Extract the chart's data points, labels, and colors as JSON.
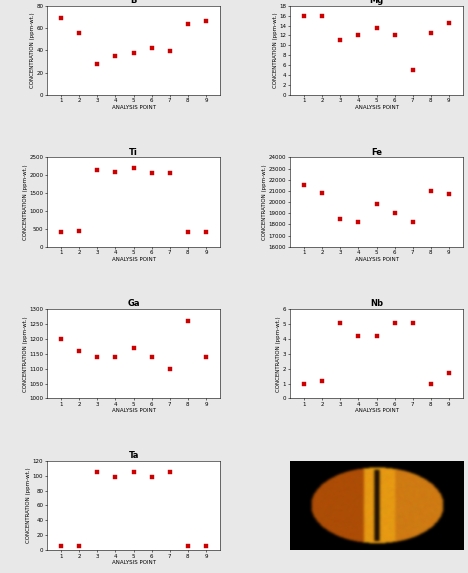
{
  "B": {
    "x": [
      1,
      2,
      3,
      4,
      5,
      6,
      7,
      8,
      9
    ],
    "y": [
      69,
      56,
      28,
      35,
      38,
      42,
      39,
      64,
      66
    ],
    "ylim": [
      0,
      80
    ],
    "yticks": [
      0,
      20,
      40,
      60,
      80
    ]
  },
  "Mg": {
    "x": [
      1,
      2,
      3,
      4,
      5,
      6,
      7,
      8,
      9
    ],
    "y": [
      16,
      16,
      11,
      12,
      13.5,
      12,
      5,
      12.5,
      14.5
    ],
    "ylim": [
      0,
      18
    ],
    "yticks": [
      0,
      2,
      4,
      6,
      8,
      10,
      12,
      14,
      16,
      18
    ]
  },
  "Ti": {
    "x": [
      1,
      2,
      3,
      4,
      5,
      6,
      7,
      8,
      9
    ],
    "y": [
      400,
      450,
      2150,
      2100,
      2200,
      2050,
      2050,
      400,
      400
    ],
    "ylim": [
      0,
      2500
    ],
    "yticks": [
      0,
      500,
      1000,
      1500,
      2000,
      2500
    ]
  },
  "Fe": {
    "x": [
      1,
      2,
      3,
      4,
      5,
      6,
      7,
      8,
      9
    ],
    "y": [
      21500,
      20800,
      18500,
      18200,
      19800,
      19000,
      18200,
      21000,
      20700
    ],
    "ylim": [
      16000,
      24000
    ],
    "yticks": [
      16000,
      17000,
      18000,
      19000,
      20000,
      21000,
      22000,
      23000,
      24000
    ]
  },
  "Ga": {
    "x": [
      1,
      2,
      3,
      4,
      5,
      6,
      7,
      8,
      9
    ],
    "y": [
      1200,
      1160,
      1140,
      1140,
      1170,
      1140,
      1100,
      1260,
      1140
    ],
    "ylim": [
      1000,
      1300
    ],
    "yticks": [
      1000,
      1050,
      1100,
      1150,
      1200,
      1250,
      1300
    ]
  },
  "Nb": {
    "x": [
      1,
      2,
      3,
      4,
      5,
      6,
      7,
      8,
      9
    ],
    "y": [
      1.0,
      1.2,
      5.1,
      4.2,
      4.2,
      5.1,
      5.1,
      1.0,
      1.7
    ],
    "ylim": [
      0,
      6
    ],
    "yticks": [
      0,
      1,
      2,
      3,
      4,
      5,
      6
    ]
  },
  "Ta": {
    "x": [
      1,
      2,
      3,
      4,
      5,
      6,
      7,
      8,
      9
    ],
    "y": [
      5,
      5,
      105,
      98,
      105,
      98,
      105,
      5,
      5
    ],
    "ylim": [
      0,
      120
    ],
    "yticks": [
      0,
      20,
      40,
      60,
      80,
      100,
      120
    ]
  },
  "marker_color": "#cc0000",
  "marker_size": 3,
  "ylabel": "CONCENTRATION (ppm-wt.)",
  "xlabel": "ANALYSIS POINT",
  "title_fontsize": 6,
  "label_fontsize": 4,
  "tick_fontsize": 4,
  "bg_color": "#e8e8e8"
}
